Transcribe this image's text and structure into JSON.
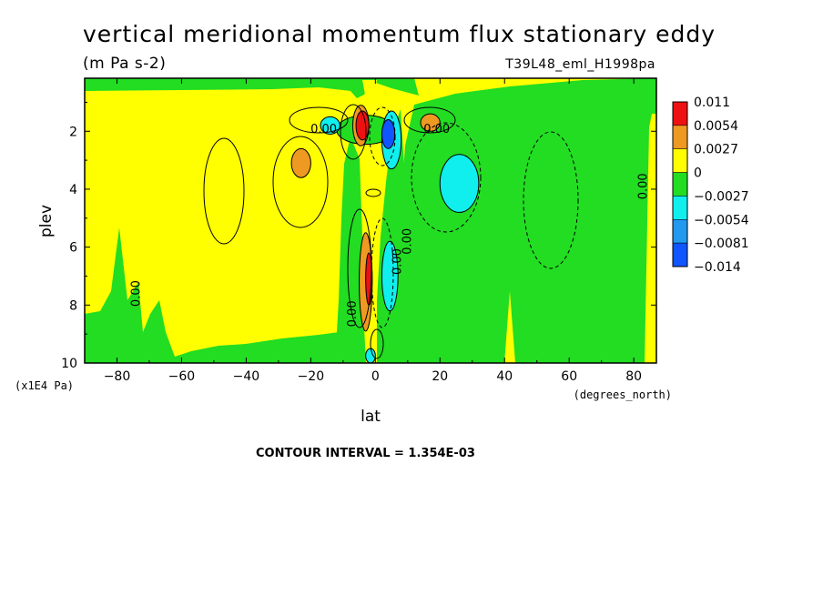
{
  "colors": {
    "red": "#ee1111",
    "orange": "#ee9922",
    "yellow": "#ffff00",
    "green": "#22dd22",
    "cyan": "#11eeee",
    "mid_blue": "#2299ee",
    "blue": "#1155ff",
    "line": "#000000"
  },
  "chart_data": {
    "type": "heatmap",
    "title": "vertical meridional momentum flux stationary eddy",
    "units": "(m Pa s-2)",
    "run_label": "T39L48_eml_H1998pa",
    "xlabel": "lat",
    "x_unit": "(degrees_north)",
    "ylabel": "plev",
    "y_unit": "(x1E4 Pa)",
    "xlim": [
      -90,
      87
    ],
    "ylim": [
      10,
      0.17
    ],
    "x_ticks": [
      -80,
      -60,
      -40,
      -20,
      0,
      20,
      40,
      60,
      80
    ],
    "y_ticks": [
      2,
      4,
      6,
      8,
      10
    ],
    "x_tick_labels": [
      "−80",
      "−60",
      "−40",
      "−20",
      "0",
      "20",
      "40",
      "60",
      "80"
    ],
    "y_tick_labels": [
      "2",
      "4",
      "6",
      "8",
      "10"
    ],
    "contour_interval_text": "CONTOUR INTERVAL = 1.354E-03",
    "legend": {
      "levels": [
        "0.011",
        "0.0054",
        "0.0027",
        "0",
        "−0.0027",
        "−0.0054",
        "−0.0081",
        "−0.014"
      ],
      "colors": [
        "#ee1111",
        "#ee9922",
        "#ffff00",
        "#22dd22",
        "#11eeee",
        "#2299ee",
        "#1155ff"
      ]
    },
    "contour_labels": [
      {
        "text": "0.00",
        "lat": -16,
        "plev": 2.05,
        "angle": 0
      },
      {
        "text": "0.00",
        "lat": 19,
        "plev": 2.05,
        "angle": 0
      },
      {
        "text": "0.00",
        "lat": -73,
        "plev": 7.6,
        "angle": -90
      },
      {
        "text": "0.00",
        "lat": -6,
        "plev": 8.3,
        "angle": -90
      },
      {
        "text": "0.00",
        "lat": 8,
        "plev": 6.5,
        "angle": -90
      },
      {
        "text": "0.00",
        "lat": 11,
        "plev": 5.8,
        "angle": -90
      },
      {
        "text": "0.00",
        "lat": 84,
        "plev": 3.9,
        "angle": -90
      }
    ],
    "regions": [
      {
        "level": "green",
        "lat": -88,
        "plev": 10,
        "w": 20,
        "h": 2.4
      },
      {
        "level": "green",
        "lat": -10,
        "plev": 10,
        "w": 8,
        "h": 1.0
      },
      {
        "level": "green",
        "lat": -12,
        "plev": 1.45,
        "w": 18,
        "h": 1.0
      },
      {
        "level": "cyan",
        "lat": -17,
        "plev": 1.5,
        "w": 6,
        "h": 0.6
      },
      {
        "level": "orange",
        "lat": -7,
        "plev": 1.1,
        "w": 5,
        "h": 1.4
      },
      {
        "level": "red",
        "lat": -6,
        "plev": 1.3,
        "w": 4,
        "h": 1.0
      },
      {
        "level": "cyan",
        "lat": 2,
        "plev": 1.3,
        "w": 6,
        "h": 2.0
      },
      {
        "level": "blue",
        "lat": 2,
        "plev": 1.6,
        "w": 4,
        "h": 1.0
      },
      {
        "level": "orange",
        "lat": 14,
        "plev": 1.4,
        "w": 6,
        "h": 0.6
      },
      {
        "level": "orange",
        "lat": -26,
        "plev": 2.6,
        "w": 6,
        "h": 1.0
      },
      {
        "level": "cyan",
        "lat": 20,
        "plev": 2.8,
        "w": 12,
        "h": 2.0
      },
      {
        "level": "orange",
        "lat": -5,
        "plev": 5.5,
        "w": 4,
        "h": 3.4
      },
      {
        "level": "red",
        "lat": -3,
        "plev": 6.2,
        "w": 2,
        "h": 1.8
      },
      {
        "level": "cyan",
        "lat": 2,
        "plev": 5.8,
        "w": 5,
        "h": 2.4
      },
      {
        "level": "cyan",
        "lat": -3,
        "plev": 9.5,
        "w": 3,
        "h": 0.5
      }
    ]
  }
}
